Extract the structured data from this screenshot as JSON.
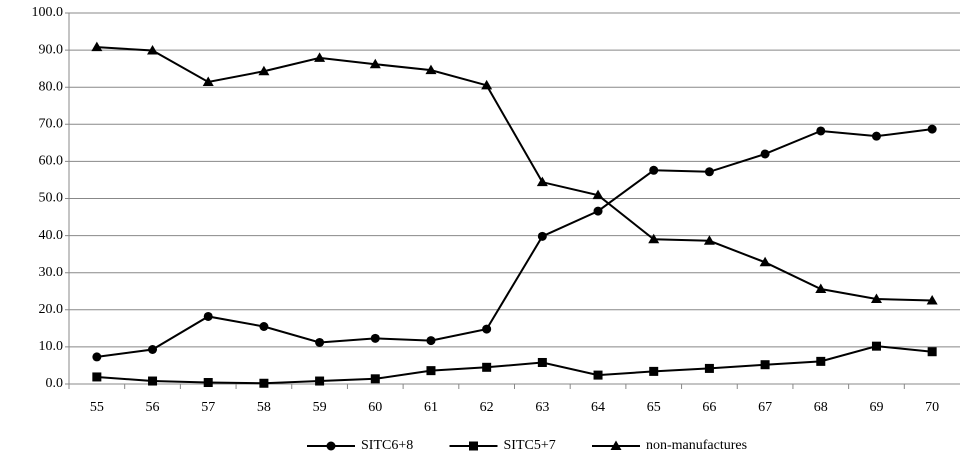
{
  "chart_data": {
    "type": "line",
    "categories": [
      "55",
      "56",
      "57",
      "58",
      "59",
      "60",
      "61",
      "62",
      "63",
      "64",
      "65",
      "66",
      "67",
      "68",
      "69",
      "70"
    ],
    "series": [
      {
        "name": "SITC6+8",
        "color": "#000000",
        "marker": "circle",
        "values": [
          7.3,
          9.3,
          18.2,
          15.5,
          11.2,
          12.3,
          11.7,
          14.8,
          39.8,
          46.6,
          57.6,
          57.2,
          62.0,
          68.2,
          66.8,
          68.7
        ]
      },
      {
        "name": "SITC5+7",
        "color": "#000000",
        "marker": "square",
        "values": [
          1.9,
          0.8,
          0.4,
          0.2,
          0.8,
          1.4,
          3.6,
          4.5,
          5.8,
          2.4,
          3.4,
          4.2,
          5.2,
          6.1,
          10.2,
          8.7
        ]
      },
      {
        "name": "non-manufactures",
        "color": "#000000",
        "marker": "triangle",
        "values": [
          90.8,
          89.9,
          81.4,
          84.3,
          87.9,
          86.2,
          84.6,
          80.5,
          54.4,
          50.9,
          39.0,
          38.6,
          32.8,
          25.6,
          22.9,
          22.5
        ]
      }
    ],
    "ylim": [
      0,
      100
    ],
    "yticks": [
      {
        "value": 0,
        "label": "0.0"
      },
      {
        "value": 10,
        "label": "10.0"
      },
      {
        "value": 20,
        "label": "20.0"
      },
      {
        "value": 30,
        "label": "30.0"
      },
      {
        "value": 40,
        "label": "40.0"
      },
      {
        "value": 50,
        "label": "50.0"
      },
      {
        "value": 60,
        "label": "60.0"
      },
      {
        "value": 70,
        "label": "70.0"
      },
      {
        "value": 80,
        "label": "80.0"
      },
      {
        "value": 90,
        "label": "90.0"
      },
      {
        "value": 100,
        "label": "100.0"
      }
    ],
    "grid": true,
    "legend": "bottom"
  }
}
